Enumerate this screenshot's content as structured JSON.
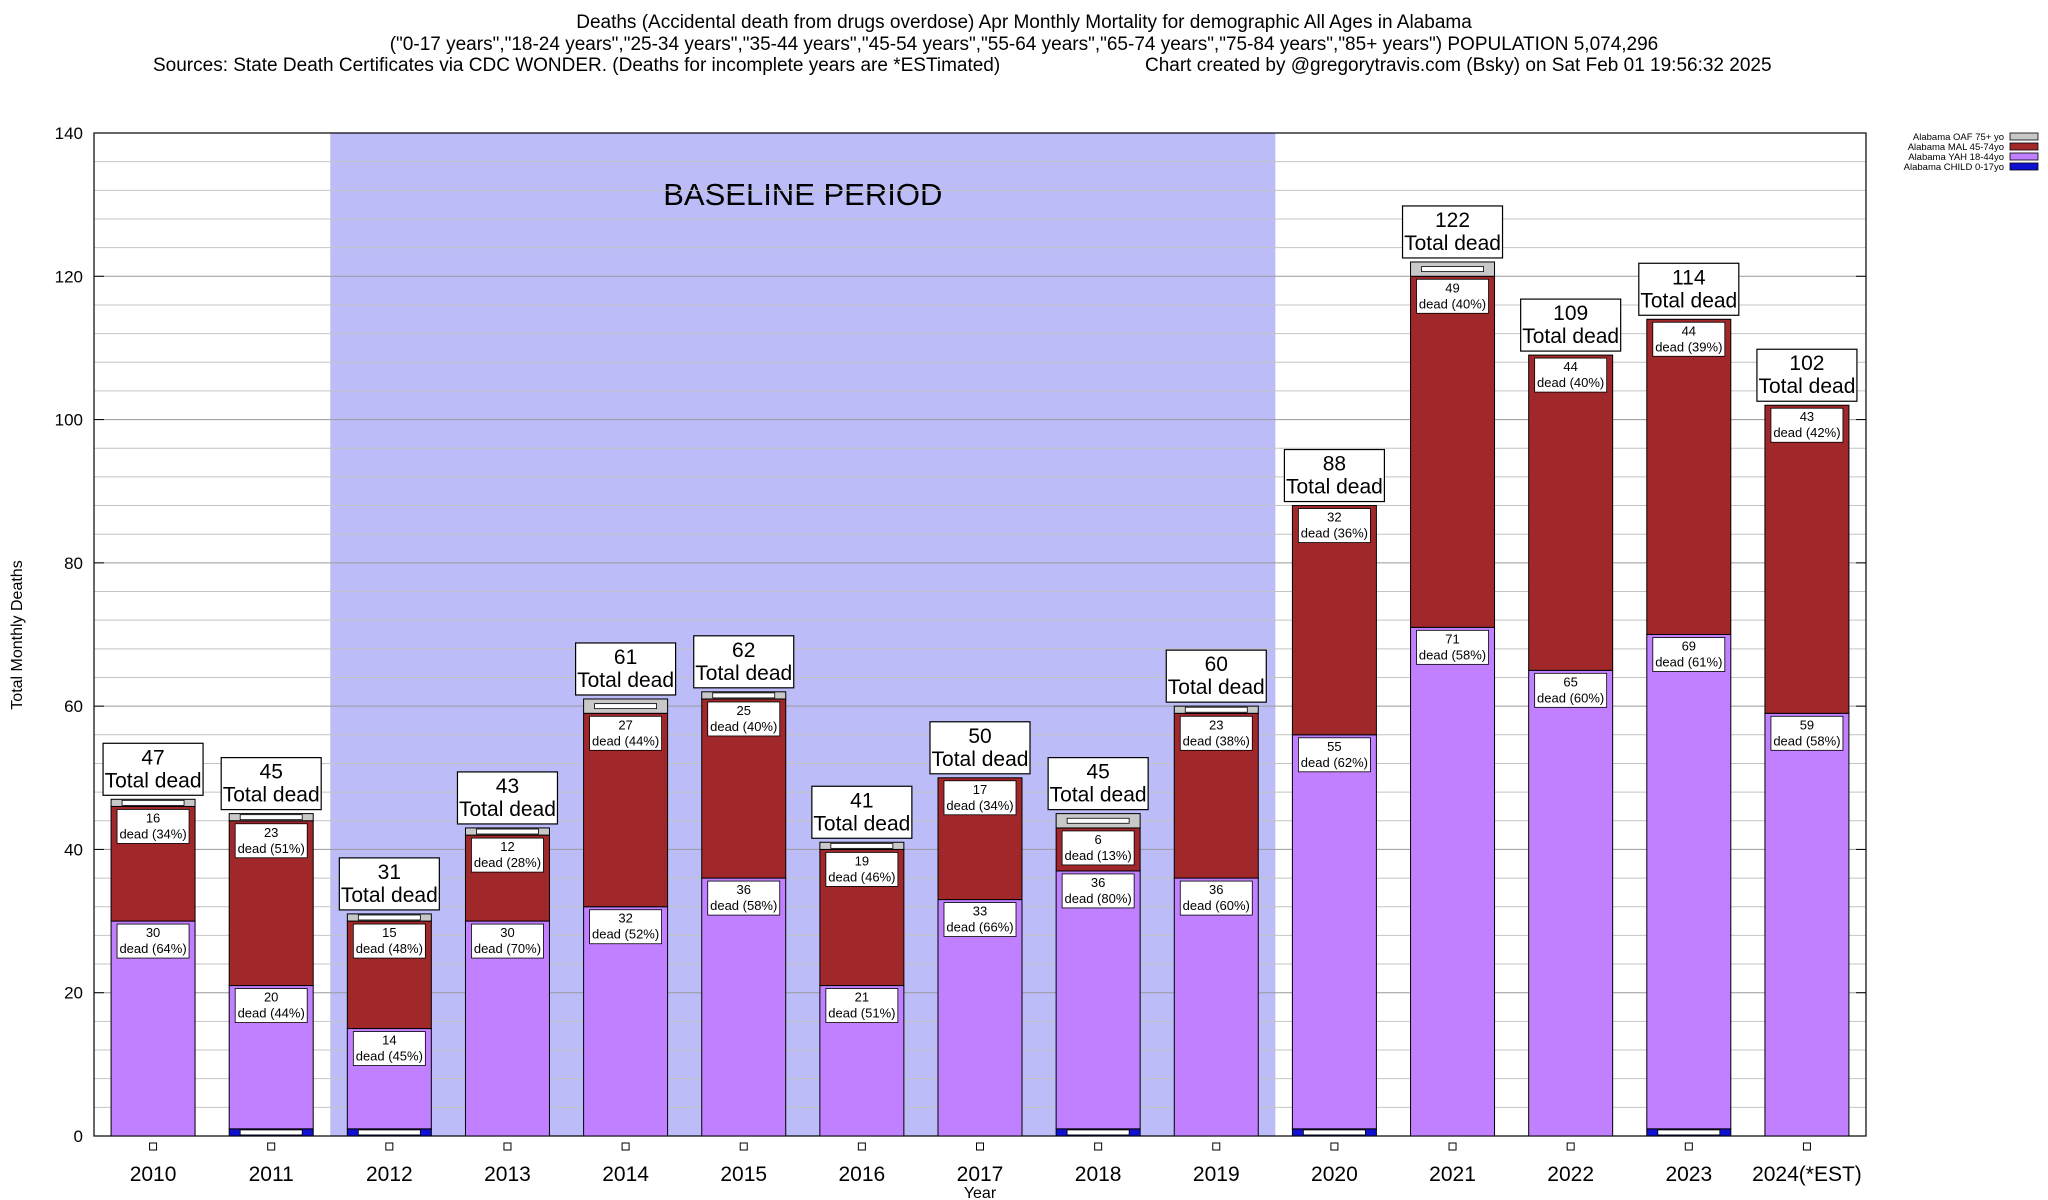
{
  "header": {
    "line1": "Deaths (Accidental death from drugs overdose) Apr Monthly Mortality for demographic All Ages in Alabama",
    "line2": "(\"0-17 years\",\"18-24 years\",\"25-34 years\",\"35-44 years\",\"45-54 years\",\"55-64 years\",\"65-74 years\",\"75-84 years\",\"85+ years\") POPULATION 5,074,296",
    "sources": "Sources: State Death Certificates via CDC WONDER. (Deaths for incomplete years are *ESTimated)",
    "credit": "Chart created by @gregorytravis.com (Bsky) on Sat Feb 01 19:56:32 2025"
  },
  "chart_data": {
    "type": "bar",
    "stacked": true,
    "xlabel": "Year",
    "ylabel": "Total Monthly Deaths",
    "ylim": [
      0,
      140
    ],
    "yticks": [
      0,
      20,
      40,
      60,
      80,
      100,
      120,
      140
    ],
    "grid": true,
    "legend_position": "top-right",
    "categories": [
      "2010",
      "2011",
      "2012",
      "2013",
      "2014",
      "2015",
      "2016",
      "2017",
      "2018",
      "2019",
      "2020",
      "2021",
      "2022",
      "2023",
      "2024(*EST)"
    ],
    "baseline": {
      "label": "BASELINE PERIOD",
      "from": "2012",
      "to": "2019",
      "color": "#bcbcf8"
    },
    "series": [
      {
        "name": "Alabama CHILD 0-17yo",
        "color": "#1010d0",
        "values": [
          0,
          1,
          1,
          0,
          0,
          0,
          0,
          0,
          1,
          0,
          1,
          0,
          0,
          1,
          0
        ],
        "labels": []
      },
      {
        "name": "Alabama YAH 18-44yo",
        "color": "#c080ff",
        "values": [
          30,
          20,
          14,
          30,
          32,
          36,
          21,
          33,
          36,
          36,
          55,
          71,
          65,
          69,
          59
        ],
        "labels": [
          "dead (64%)",
          "dead (44%)",
          "dead (45%)",
          "dead (70%)",
          "dead (52%)",
          "dead (58%)",
          "dead (51%)",
          "dead (66%)",
          "dead (80%)",
          "dead (60%)",
          "dead (62%)",
          "dead (58%)",
          "dead (60%)",
          "dead (61%)",
          "dead (58%)"
        ]
      },
      {
        "name": "Alabama MAL 45-74yo",
        "color": "#a0282a",
        "values": [
          16,
          23,
          15,
          12,
          27,
          25,
          19,
          17,
          6,
          23,
          32,
          49,
          44,
          44,
          43
        ],
        "labels": [
          "dead (34%)",
          "dead (51%)",
          "dead (48%)",
          "dead (28%)",
          "dead (44%)",
          "dead (40%)",
          "dead (46%)",
          "dead (34%)",
          "dead (13%)",
          "dead (38%)",
          "dead (36%)",
          "dead (40%)",
          "dead (40%)",
          "dead (39%)",
          "dead (42%)"
        ]
      },
      {
        "name": "Alabama OAF 75+ yo",
        "color": "#c8c8c8",
        "values": [
          1,
          1,
          1,
          1,
          2,
          1,
          1,
          0,
          2,
          1,
          0,
          2,
          0,
          0,
          0
        ],
        "labels": []
      }
    ],
    "totals": [
      "47",
      "45",
      "31",
      "43",
      "61",
      "62",
      "41",
      "50",
      "45",
      "60",
      "88",
      "122",
      "109",
      "114",
      "102"
    ],
    "total_suffix": "Total dead"
  }
}
